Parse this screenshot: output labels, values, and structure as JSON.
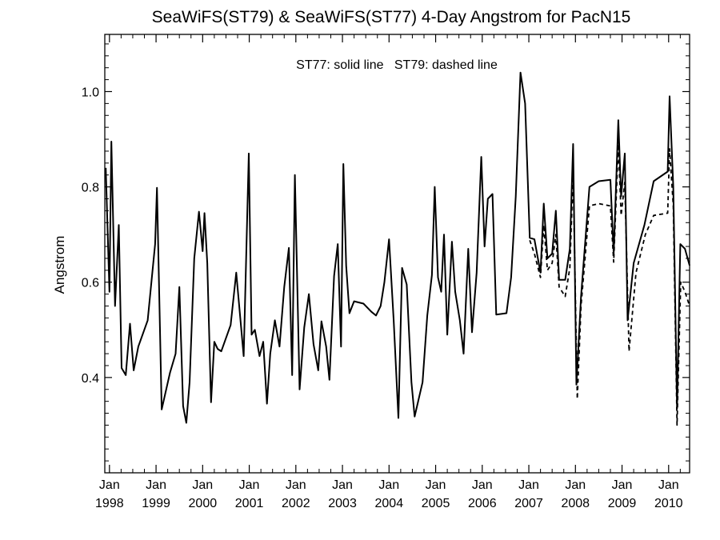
{
  "chart_data": {
    "type": "line",
    "title": "SeaWiFS(ST79) & SeaWiFS(ST77) 4-Day Angstrom for PacN15",
    "annotation": "ST77: solid line   ST79: dashed line",
    "xlabel": "",
    "ylabel": "Angstrom",
    "xlim": [
      1997.9,
      2010.45
    ],
    "ylim": [
      0.2,
      1.12
    ],
    "x_ticks": [
      {
        "x": 1998,
        "month": "Jan",
        "year": "1998"
      },
      {
        "x": 1999,
        "month": "Jan",
        "year": "1999"
      },
      {
        "x": 2000,
        "month": "Jan",
        "year": "2000"
      },
      {
        "x": 2001,
        "month": "Jan",
        "year": "2001"
      },
      {
        "x": 2002,
        "month": "Jan",
        "year": "2002"
      },
      {
        "x": 2003,
        "month": "Jan",
        "year": "2003"
      },
      {
        "x": 2004,
        "month": "Jan",
        "year": "2004"
      },
      {
        "x": 2005,
        "month": "Jan",
        "year": "2005"
      },
      {
        "x": 2006,
        "month": "Jan",
        "year": "2006"
      },
      {
        "x": 2007,
        "month": "Jan",
        "year": "2007"
      },
      {
        "x": 2008,
        "month": "Jan",
        "year": "2008"
      },
      {
        "x": 2009,
        "month": "Jan",
        "year": "2009"
      },
      {
        "x": 2010,
        "month": "Jan",
        "year": "2010"
      }
    ],
    "y_ticks": [
      0.4,
      0.6,
      0.8,
      1.0
    ],
    "y_tick_labels": [
      "0.4",
      "0.6",
      "0.8",
      "1.0"
    ],
    "series": [
      {
        "name": "ST77",
        "style": "solid",
        "points": [
          [
            1997.92,
            0.84
          ],
          [
            1998.0,
            0.58
          ],
          [
            1998.04,
            0.895
          ],
          [
            1998.12,
            0.55
          ],
          [
            1998.2,
            0.72
          ],
          [
            1998.26,
            0.42
          ],
          [
            1998.35,
            0.405
          ],
          [
            1998.44,
            0.513
          ],
          [
            1998.52,
            0.415
          ],
          [
            1998.62,
            0.465
          ],
          [
            1998.82,
            0.52
          ],
          [
            1998.98,
            0.68
          ],
          [
            1999.02,
            0.798
          ],
          [
            1999.12,
            0.333
          ],
          [
            1999.3,
            0.41
          ],
          [
            1999.42,
            0.45
          ],
          [
            1999.5,
            0.59
          ],
          [
            1999.58,
            0.34
          ],
          [
            1999.65,
            0.305
          ],
          [
            1999.72,
            0.39
          ],
          [
            1999.82,
            0.65
          ],
          [
            1999.92,
            0.748
          ],
          [
            2000.0,
            0.665
          ],
          [
            2000.04,
            0.745
          ],
          [
            2000.1,
            0.64
          ],
          [
            2000.18,
            0.348
          ],
          [
            2000.25,
            0.475
          ],
          [
            2000.32,
            0.46
          ],
          [
            2000.4,
            0.455
          ],
          [
            2000.6,
            0.51
          ],
          [
            2000.72,
            0.62
          ],
          [
            2000.88,
            0.445
          ],
          [
            2000.99,
            0.87
          ],
          [
            2001.05,
            0.49
          ],
          [
            2001.12,
            0.5
          ],
          [
            2001.22,
            0.445
          ],
          [
            2001.3,
            0.475
          ],
          [
            2001.38,
            0.345
          ],
          [
            2001.45,
            0.45
          ],
          [
            2001.55,
            0.52
          ],
          [
            2001.65,
            0.465
          ],
          [
            2001.75,
            0.59
          ],
          [
            2001.85,
            0.672
          ],
          [
            2001.92,
            0.405
          ],
          [
            2001.98,
            0.825
          ],
          [
            2002.08,
            0.375
          ],
          [
            2002.18,
            0.505
          ],
          [
            2002.28,
            0.575
          ],
          [
            2002.38,
            0.47
          ],
          [
            2002.48,
            0.415
          ],
          [
            2002.55,
            0.518
          ],
          [
            2002.65,
            0.465
          ],
          [
            2002.72,
            0.395
          ],
          [
            2002.82,
            0.613
          ],
          [
            2002.9,
            0.68
          ],
          [
            2002.97,
            0.465
          ],
          [
            2003.02,
            0.848
          ],
          [
            2003.08,
            0.635
          ],
          [
            2003.15,
            0.535
          ],
          [
            2003.25,
            0.56
          ],
          [
            2003.45,
            0.555
          ],
          [
            2003.62,
            0.538
          ],
          [
            2003.72,
            0.53
          ],
          [
            2003.82,
            0.55
          ],
          [
            2003.9,
            0.6
          ],
          [
            2004.0,
            0.69
          ],
          [
            2004.1,
            0.52
          ],
          [
            2004.2,
            0.315
          ],
          [
            2004.28,
            0.63
          ],
          [
            2004.38,
            0.595
          ],
          [
            2004.48,
            0.39
          ],
          [
            2004.55,
            0.318
          ],
          [
            2004.72,
            0.39
          ],
          [
            2004.82,
            0.53
          ],
          [
            2004.92,
            0.615
          ],
          [
            2004.98,
            0.8
          ],
          [
            2005.05,
            0.61
          ],
          [
            2005.12,
            0.58
          ],
          [
            2005.18,
            0.7
          ],
          [
            2005.25,
            0.49
          ],
          [
            2005.35,
            0.685
          ],
          [
            2005.42,
            0.58
          ],
          [
            2005.52,
            0.52
          ],
          [
            2005.6,
            0.45
          ],
          [
            2005.7,
            0.67
          ],
          [
            2005.78,
            0.495
          ],
          [
            2005.88,
            0.62
          ],
          [
            2005.98,
            0.863
          ],
          [
            2006.05,
            0.675
          ],
          [
            2006.12,
            0.775
          ],
          [
            2006.22,
            0.785
          ],
          [
            2006.3,
            0.532
          ],
          [
            2006.52,
            0.535
          ],
          [
            2006.62,
            0.61
          ],
          [
            2006.72,
            0.78
          ],
          [
            2006.82,
            1.04
          ],
          [
            2006.92,
            0.975
          ],
          [
            2007.02,
            0.693
          ],
          [
            2007.12,
            0.69
          ],
          [
            2007.25,
            0.62
          ],
          [
            2007.32,
            0.765
          ],
          [
            2007.4,
            0.65
          ],
          [
            2007.5,
            0.66
          ],
          [
            2007.58,
            0.75
          ],
          [
            2007.65,
            0.605
          ],
          [
            2007.78,
            0.605
          ],
          [
            2007.88,
            0.67
          ],
          [
            2007.95,
            0.89
          ],
          [
            2008.02,
            0.385
          ],
          [
            2008.12,
            0.57
          ],
          [
            2008.3,
            0.8
          ],
          [
            2008.5,
            0.812
          ],
          [
            2008.75,
            0.815
          ],
          [
            2008.82,
            0.66
          ],
          [
            2008.92,
            0.94
          ],
          [
            2008.98,
            0.78
          ],
          [
            2009.06,
            0.87
          ],
          [
            2009.12,
            0.52
          ],
          [
            2009.25,
            0.64
          ],
          [
            2009.48,
            0.72
          ],
          [
            2009.68,
            0.812
          ],
          [
            2009.98,
            0.832
          ],
          [
            2010.02,
            0.99
          ],
          [
            2010.1,
            0.8
          ],
          [
            2010.18,
            0.335
          ],
          [
            2010.25,
            0.68
          ],
          [
            2010.35,
            0.67
          ],
          [
            2010.45,
            0.635
          ]
        ]
      },
      {
        "name": "ST79",
        "style": "dashed",
        "points": [
          [
            2007.02,
            0.688
          ],
          [
            2007.12,
            0.66
          ],
          [
            2007.25,
            0.61
          ],
          [
            2007.32,
            0.72
          ],
          [
            2007.4,
            0.625
          ],
          [
            2007.5,
            0.64
          ],
          [
            2007.58,
            0.7
          ],
          [
            2007.65,
            0.59
          ],
          [
            2007.78,
            0.57
          ],
          [
            2007.88,
            0.63
          ],
          [
            2007.95,
            0.83
          ],
          [
            2008.04,
            0.355
          ],
          [
            2008.12,
            0.55
          ],
          [
            2008.3,
            0.76
          ],
          [
            2008.5,
            0.765
          ],
          [
            2008.75,
            0.76
          ],
          [
            2008.82,
            0.642
          ],
          [
            2008.92,
            0.89
          ],
          [
            2008.98,
            0.74
          ],
          [
            2009.06,
            0.81
          ],
          [
            2009.15,
            0.455
          ],
          [
            2009.3,
            0.62
          ],
          [
            2009.5,
            0.7
          ],
          [
            2009.68,
            0.74
          ],
          [
            2009.98,
            0.745
          ],
          [
            2010.02,
            0.88
          ],
          [
            2010.1,
            0.76
          ],
          [
            2010.18,
            0.3
          ],
          [
            2010.26,
            0.6
          ],
          [
            2010.35,
            0.58
          ],
          [
            2010.45,
            0.55
          ]
        ]
      }
    ]
  }
}
